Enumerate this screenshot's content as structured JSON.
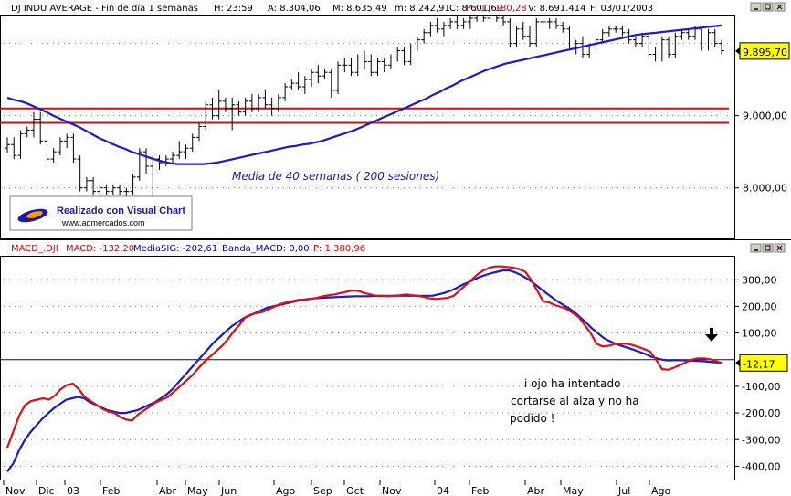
{
  "colors": {
    "price_bar": "#000000",
    "ma40": "#1a1ad0",
    "support": "#d01010",
    "macd": "#e01010",
    "signal": "#1a1ad0",
    "zero_line": "#000080",
    "label_bg": "#ffff00",
    "header_red": "#e00000",
    "header_blue": "#0000c0"
  },
  "window_icons": [
    "minimize-icon",
    "restore-icon",
    "close-icon"
  ],
  "upper_header": {
    "title": "DJ INDU AVERAGE - Fin de día 1 semanas",
    "H": "H: 23:59",
    "A": "A: 8.304,06",
    "M": "M: 8.635,49",
    "m": "m: 8.242,91",
    "C": "C: 8.601,69",
    "P": "P : 11.180,28",
    "V": "V: 8.691.414",
    "F": "F: 03/01/2003"
  },
  "lower_header": {
    "macd_label": "MACD_.DJI",
    "macd_val": "MACD: -132,20",
    "sig_val": "MediaSIG: -202,61",
    "band_val": "Banda_MACD: 0,00",
    "p_val": "P: 1.380,96"
  },
  "logo": {
    "title": "Realizado con Visual Chart",
    "url": "www.agmercados.com"
  },
  "annotations": {
    "ma_label": "Media de 40 semanas ( 200 sesiones)",
    "note_line1": "i ojo ha intentado",
    "note_line2": "cortarse al alza y no ha",
    "note_line3": "podido !"
  },
  "chart_data": [
    {
      "type": "line",
      "title": "DJ INDU AVERAGE - Fin de día 1 semanas",
      "x_labels": [
        "Nov",
        "Dic",
        "03",
        "Feb",
        "Abr",
        "May",
        "Jun",
        "Ago",
        "Sep",
        "Oct",
        "Nov",
        "04",
        "Feb",
        "Abr",
        "May",
        "Jul",
        "Ago"
      ],
      "ylim": [
        7300,
        10400
      ],
      "y_ticks": [
        {
          "value": 8000,
          "label": "8.000,00"
        },
        {
          "value": 9000,
          "label": "9.000,00"
        }
      ],
      "last_value_label": "9.895,70",
      "last_value": 9895.7,
      "support_lines": [
        9100,
        8900
      ],
      "price_bars": [
        [
          8550,
          8700,
          8480,
          8600
        ],
        [
          8600,
          8700,
          8400,
          8450
        ],
        [
          8450,
          8800,
          8400,
          8750
        ],
        [
          8750,
          8850,
          8700,
          8800
        ],
        [
          8800,
          9050,
          8700,
          8950
        ],
        [
          8950,
          9050,
          8600,
          8650
        ],
        [
          8650,
          8700,
          8300,
          8400
        ],
        [
          8400,
          8550,
          8350,
          8500
        ],
        [
          8500,
          8700,
          8450,
          8650
        ],
        [
          8650,
          8750,
          8550,
          8700
        ],
        [
          8700,
          8750,
          8350,
          8400
        ],
        [
          8400,
          8450,
          7950,
          8000
        ],
        [
          8000,
          8150,
          7950,
          8100
        ],
        [
          8100,
          8150,
          7900,
          7950
        ],
        [
          7950,
          8050,
          7850,
          8000
        ],
        [
          8000,
          8050,
          7900,
          7950
        ],
        [
          7950,
          8050,
          7900,
          8000
        ],
        [
          8000,
          8050,
          7900,
          7950
        ],
        [
          7950,
          8000,
          7850,
          7950
        ],
        [
          7950,
          8200,
          7900,
          8150
        ],
        [
          8150,
          8550,
          8100,
          8500
        ],
        [
          8500,
          8550,
          8200,
          8300
        ],
        [
          8300,
          8450,
          7850,
          8400
        ],
        [
          8400,
          8450,
          8250,
          8350
        ],
        [
          8350,
          8450,
          8300,
          8400
        ],
        [
          8400,
          8500,
          8350,
          8450
        ],
        [
          8450,
          8650,
          8400,
          8500
        ],
        [
          8500,
          8600,
          8400,
          8550
        ],
        [
          8550,
          8750,
          8500,
          8700
        ],
        [
          8700,
          8900,
          8650,
          8850
        ],
        [
          8850,
          9200,
          8800,
          9150
        ],
        [
          9150,
          9250,
          8950,
          9000
        ],
        [
          9000,
          9350,
          8950,
          9200
        ],
        [
          9200,
          9250,
          9050,
          9100
        ],
        [
          9100,
          9250,
          8800,
          9150
        ],
        [
          9150,
          9200,
          9000,
          9050
        ],
        [
          9050,
          9250,
          9000,
          9200
        ],
        [
          9200,
          9300,
          9050,
          9100
        ],
        [
          9100,
          9300,
          9050,
          9250
        ],
        [
          9250,
          9350,
          9100,
          9150
        ],
        [
          9150,
          9250,
          9000,
          9100
        ],
        [
          9100,
          9300,
          9050,
          9250
        ],
        [
          9250,
          9450,
          9200,
          9400
        ],
        [
          9400,
          9500,
          9350,
          9450
        ],
        [
          9450,
          9600,
          9350,
          9400
        ],
        [
          9400,
          9550,
          9300,
          9500
        ],
        [
          9500,
          9650,
          9400,
          9600
        ],
        [
          9600,
          9700,
          9450,
          9550
        ],
        [
          9550,
          9650,
          9500,
          9600
        ],
        [
          9600,
          9650,
          9250,
          9350
        ],
        [
          9350,
          9750,
          9300,
          9700
        ],
        [
          9700,
          9800,
          9600,
          9700
        ],
        [
          9700,
          9800,
          9550,
          9600
        ],
        [
          9600,
          9850,
          9550,
          9800
        ],
        [
          9800,
          9900,
          9650,
          9750
        ],
        [
          9750,
          9850,
          9550,
          9600
        ],
        [
          9600,
          9800,
          9550,
          9750
        ],
        [
          9750,
          9800,
          9600,
          9700
        ],
        [
          9700,
          9850,
          9650,
          9800
        ],
        [
          9800,
          9950,
          9750,
          9900
        ],
        [
          9900,
          9950,
          9700,
          9750
        ],
        [
          9750,
          10000,
          9700,
          9950
        ],
        [
          9950,
          10100,
          9900,
          10050
        ],
        [
          10050,
          10200,
          10000,
          10150
        ],
        [
          10150,
          10300,
          10100,
          10250
        ],
        [
          10250,
          10350,
          10150,
          10200
        ],
        [
          10200,
          10300,
          10100,
          10250
        ],
        [
          10250,
          10350,
          10200,
          10300
        ],
        [
          10300,
          10400,
          10200,
          10250
        ],
        [
          10250,
          10350,
          10200,
          10300
        ],
        [
          10300,
          10400,
          10200,
          10350
        ],
        [
          10350,
          10450,
          10300,
          10400
        ],
        [
          10400,
          10450,
          10300,
          10350
        ],
        [
          10350,
          10450,
          10300,
          10400
        ],
        [
          10400,
          10450,
          10300,
          10350
        ],
        [
          10350,
          10400,
          10250,
          10300
        ],
        [
          10300,
          10350,
          9950,
          10000
        ],
        [
          10000,
          10250,
          9950,
          10200
        ],
        [
          10200,
          10300,
          10050,
          10100
        ],
        [
          10100,
          10250,
          9950,
          10000
        ],
        [
          10000,
          10350,
          9950,
          10300
        ],
        [
          10300,
          10400,
          10250,
          10300
        ],
        [
          10300,
          10350,
          10200,
          10300
        ],
        [
          10300,
          10350,
          10200,
          10250
        ],
        [
          10250,
          10300,
          10150,
          10200
        ],
        [
          10200,
          10250,
          9900,
          9950
        ],
        [
          9950,
          10050,
          9850,
          10000
        ],
        [
          10000,
          10100,
          9800,
          9850
        ],
        [
          9850,
          10000,
          9800,
          9950
        ],
        [
          9950,
          10100,
          9900,
          10050
        ],
        [
          10050,
          10200,
          10000,
          10150
        ],
        [
          10150,
          10250,
          10100,
          10200
        ],
        [
          10200,
          10250,
          10150,
          10200
        ],
        [
          10200,
          10250,
          10100,
          10150
        ],
        [
          10150,
          10200,
          10000,
          10050
        ],
        [
          10050,
          10100,
          9950,
          10000
        ],
        [
          10000,
          10150,
          9950,
          10100
        ],
        [
          10100,
          10150,
          9800,
          9850
        ],
        [
          9850,
          9950,
          9750,
          9800
        ],
        [
          9800,
          10100,
          9750,
          10050
        ],
        [
          10050,
          10100,
          9800,
          9850
        ],
        [
          9850,
          10150,
          9800,
          10100
        ],
        [
          10100,
          10200,
          10050,
          10150
        ],
        [
          10150,
          10200,
          10050,
          10100
        ],
        [
          10100,
          10250,
          10050,
          10200
        ],
        [
          10200,
          10200,
          9900,
          9950
        ],
        [
          9950,
          10200,
          9900,
          10150
        ],
        [
          10150,
          10200,
          9950,
          10000
        ],
        [
          10000,
          10050,
          9850,
          9900
        ]
      ],
      "ma40": [
        9250,
        9220,
        9200,
        9170,
        9130,
        9090,
        9050,
        9000,
        8960,
        8920,
        8880,
        8840,
        8790,
        8740,
        8690,
        8650,
        8610,
        8570,
        8540,
        8500,
        8470,
        8440,
        8410,
        8380,
        8360,
        8340,
        8330,
        8330,
        8330,
        8330,
        8330,
        8340,
        8350,
        8370,
        8390,
        8410,
        8430,
        8450,
        8470,
        8490,
        8510,
        8530,
        8550,
        8570,
        8580,
        8600,
        8610,
        8630,
        8650,
        8680,
        8710,
        8740,
        8770,
        8800,
        8840,
        8880,
        8920,
        8960,
        9000,
        9040,
        9080,
        9120,
        9160,
        9200,
        9240,
        9290,
        9330,
        9380,
        9420,
        9470,
        9510,
        9550,
        9590,
        9630,
        9660,
        9690,
        9720,
        9740,
        9760,
        9780,
        9800,
        9820,
        9840,
        9860,
        9880,
        9900,
        9920,
        9940,
        9960,
        9980,
        10000,
        10020,
        10040,
        10060,
        10080,
        10100,
        10120,
        10130,
        10140,
        10150,
        10160,
        10170,
        10180,
        10190,
        10200,
        10210,
        10220,
        10230,
        10240,
        10250
      ]
    },
    {
      "type": "line",
      "title": "MACD_.DJI",
      "x_labels": [
        "Nov",
        "Dic",
        "03",
        "Feb",
        "Abr",
        "May",
        "Jun",
        "Ago",
        "Sep",
        "Oct",
        "Nov",
        "04",
        "Feb",
        "Abr",
        "May",
        "Jul",
        "Ago"
      ],
      "ylim": [
        -450,
        390
      ],
      "y_ticks": [
        {
          "value": 300,
          "label": "300,00"
        },
        {
          "value": 200,
          "label": "200,00"
        },
        {
          "value": 100,
          "label": "100,00"
        },
        {
          "value": -100,
          "label": "-100,00"
        },
        {
          "value": -200,
          "label": "-200,00"
        },
        {
          "value": -300,
          "label": "-300,00"
        },
        {
          "value": -400,
          "label": "-400,00"
        }
      ],
      "last_value_label": "-12,17",
      "last_value": -12.17,
      "series": [
        {
          "name": "MACD",
          "values": [
            -330,
            -270,
            -210,
            -170,
            -155,
            -150,
            -145,
            -150,
            -135,
            -110,
            -95,
            -90,
            -110,
            -140,
            -155,
            -170,
            -185,
            -195,
            -200,
            -215,
            -225,
            -228,
            -205,
            -190,
            -175,
            -160,
            -150,
            -140,
            -120,
            -100,
            -80,
            -60,
            -35,
            -10,
            10,
            30,
            50,
            75,
            105,
            130,
            160,
            170,
            175,
            180,
            190,
            200,
            210,
            215,
            220,
            225,
            225,
            228,
            232,
            238,
            242,
            245,
            250,
            255,
            260,
            258,
            250,
            245,
            240,
            240,
            238,
            240,
            242,
            245,
            242,
            240,
            235,
            230,
            228,
            230,
            232,
            240,
            260,
            280,
            300,
            320,
            335,
            345,
            350,
            350,
            348,
            345,
            340,
            330,
            300,
            260,
            220,
            215,
            205,
            198,
            190,
            175,
            160,
            130,
            100,
            60,
            50,
            52,
            58,
            60,
            60,
            55,
            48,
            40,
            30,
            0,
            -35,
            -38,
            -30,
            -20,
            -10,
            0,
            5,
            5,
            2,
            -5,
            -12
          ]
        },
        {
          "name": "MediaSIG",
          "values": [
            -420,
            -390,
            -340,
            -300,
            -270,
            -245,
            -220,
            -200,
            -180,
            -165,
            -150,
            -145,
            -140,
            -145,
            -160,
            -170,
            -180,
            -190,
            -195,
            -200,
            -200,
            -195,
            -190,
            -180,
            -170,
            -160,
            -145,
            -130,
            -110,
            -85,
            -60,
            -35,
            -10,
            15,
            40,
            65,
            85,
            105,
            125,
            140,
            155,
            165,
            175,
            185,
            195,
            200,
            205,
            210,
            215,
            220,
            225,
            228,
            230,
            232,
            233,
            234,
            235,
            236,
            237,
            238,
            238,
            238,
            239,
            240,
            240,
            240,
            240,
            240,
            240,
            240,
            240,
            240,
            240,
            245,
            250,
            258,
            268,
            280,
            290,
            300,
            310,
            318,
            325,
            330,
            335,
            335,
            328,
            318,
            305,
            290,
            272,
            255,
            238,
            222,
            208,
            195,
            180,
            160,
            140,
            118,
            100,
            82,
            70,
            60,
            52,
            45,
            38,
            30,
            22,
            12,
            5,
            0,
            -3,
            -2,
            -2,
            -3,
            -4,
            -5,
            -6,
            -8,
            -10,
            -12
          ]
        }
      ]
    }
  ]
}
